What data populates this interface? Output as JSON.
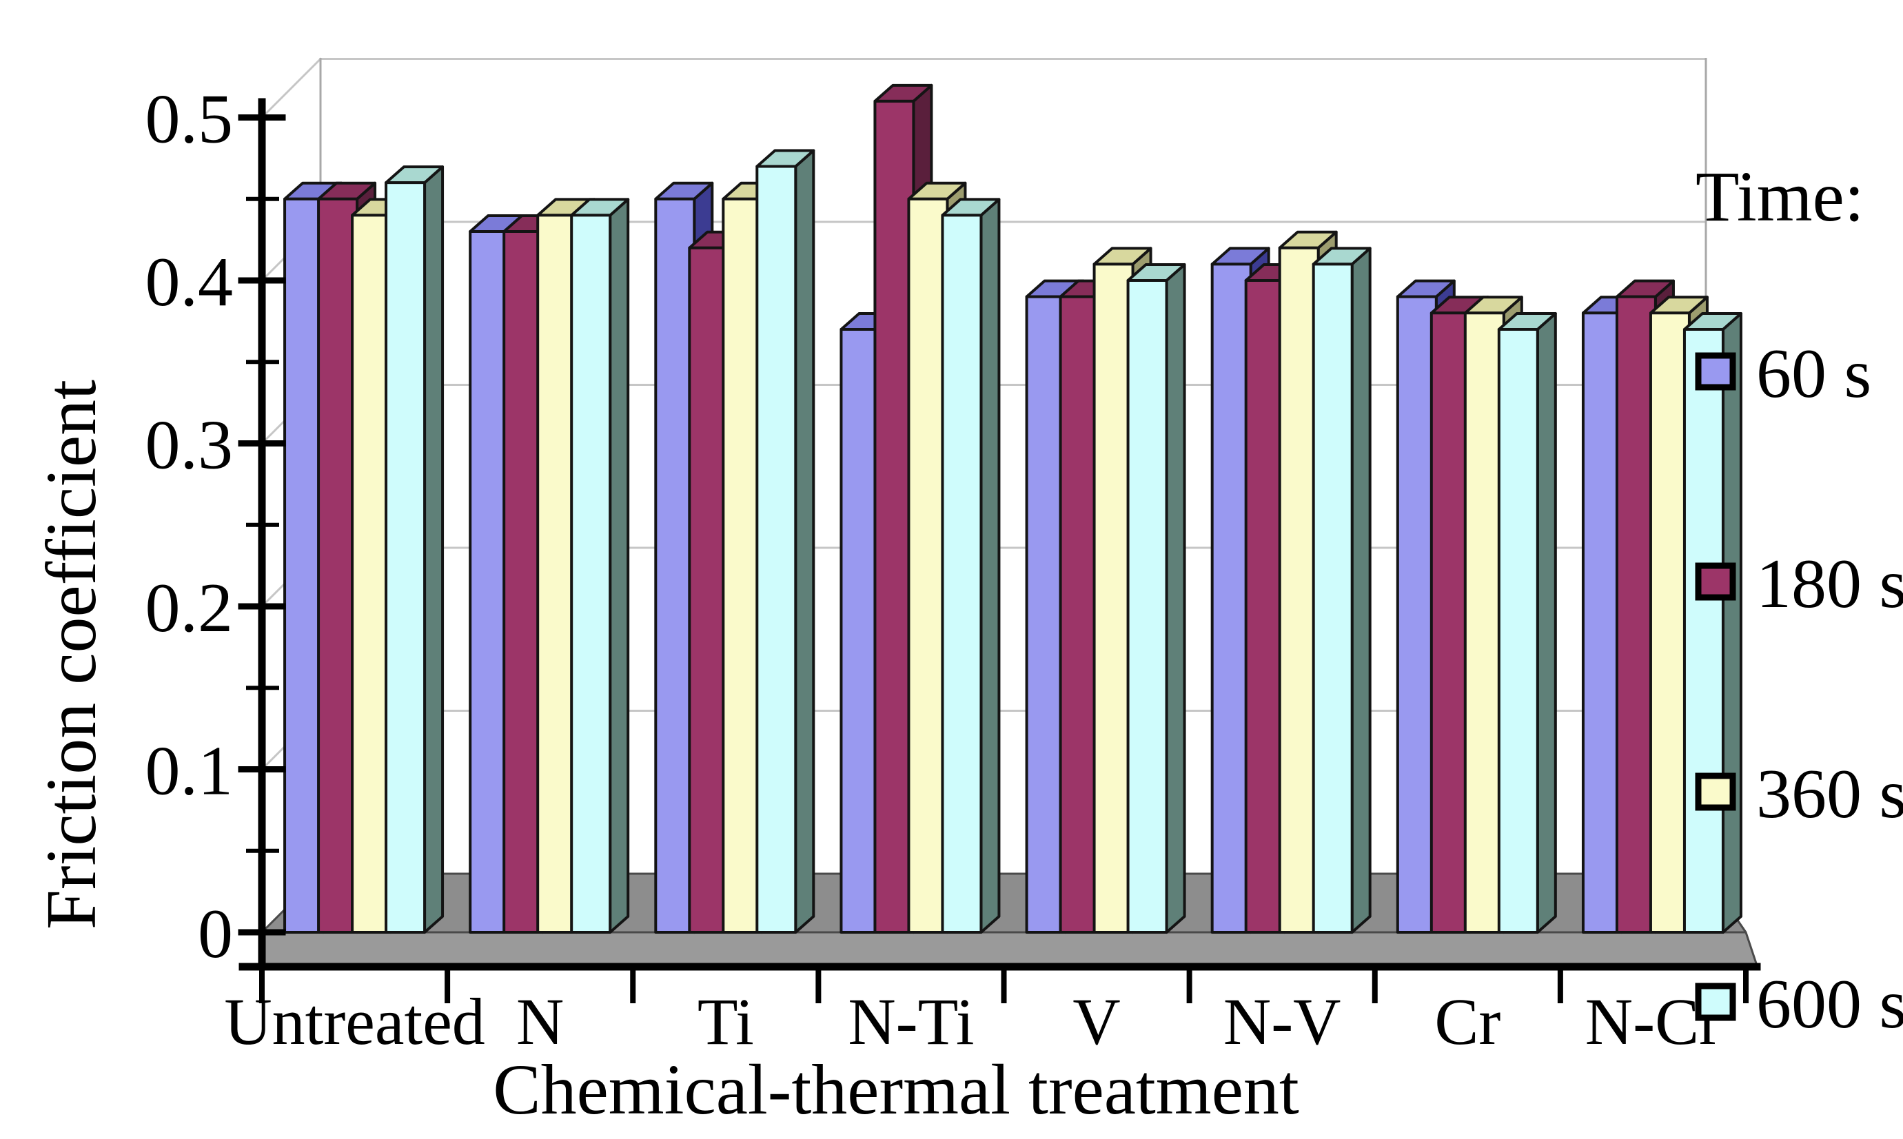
{
  "figure": {
    "background": "#ffffff",
    "kind": "3d-clustered-column-chart"
  },
  "chart_data": {
    "type": "bar",
    "projection": "3d-column",
    "title": "",
    "xlabel": "Chemical-thermal treatment",
    "ylabel": "Friction coefficient",
    "legend_title": "Time:",
    "legend_position": "right",
    "grid": true,
    "categories": [
      "Untreated",
      "N",
      "Ti",
      "N-Ti",
      "V",
      "N-V",
      "Cr",
      "N-Cr"
    ],
    "series": [
      {
        "name": "60 s",
        "color": "#9999F0",
        "top_color": "#7B7BD8",
        "side_color": "#3C3C92",
        "values": [
          0.45,
          0.43,
          0.45,
          0.37,
          0.39,
          0.41,
          0.39,
          0.38
        ]
      },
      {
        "name": "180 s",
        "color": "#9C3568",
        "top_color": "#862D59",
        "side_color": "#5A1F3C",
        "values": [
          0.45,
          0.43,
          0.42,
          0.51,
          0.39,
          0.4,
          0.38,
          0.39
        ]
      },
      {
        "name": "360 s",
        "color": "#FAFACB",
        "top_color": "#D8D89E",
        "side_color": "#9D9D6F",
        "values": [
          0.44,
          0.44,
          0.45,
          0.45,
          0.41,
          0.42,
          0.38,
          0.38
        ]
      },
      {
        "name": "600 s",
        "color": "#CFFCFC",
        "top_color": "#A9D8D0",
        "side_color": "#5F8078",
        "values": [
          0.46,
          0.44,
          0.47,
          0.44,
          0.4,
          0.41,
          0.37,
          0.37
        ]
      }
    ],
    "ylim": [
      0,
      0.5
    ],
    "ytick_step": 0.1,
    "yminor_step": 0.05,
    "yticklabels": [
      "0",
      "0.1",
      "0.2",
      "0.3",
      "0.4",
      "0.5"
    ],
    "colors": {
      "axis": "#000000",
      "gridline": "#C6C6C6",
      "wall_edge": "#A8A8A8",
      "floor_top": "#8D8D8D",
      "floor_front": "#9A9A9A",
      "outline": "#141414"
    }
  }
}
